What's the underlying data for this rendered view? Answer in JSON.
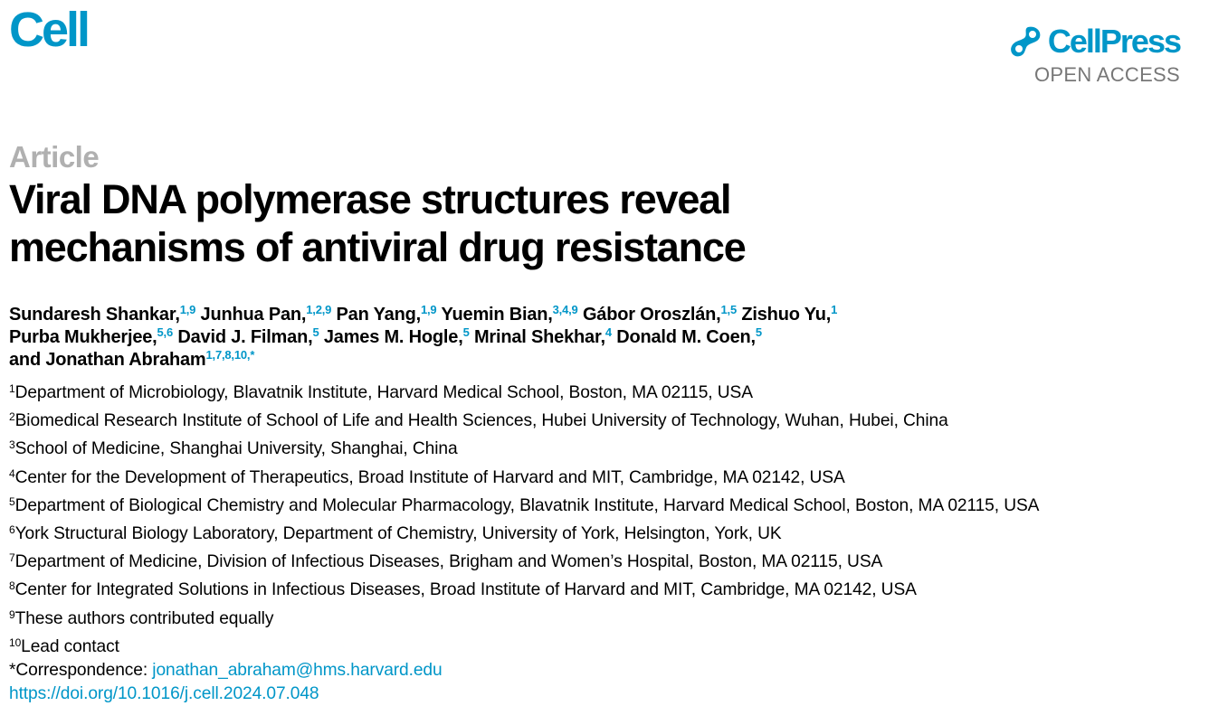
{
  "header": {
    "journal": "Cell",
    "publisher": "CellPress",
    "access": "OPEN ACCESS",
    "brand_color": "#0096c8"
  },
  "article": {
    "type": "Article",
    "title_line1": "Viral DNA polymerase structures reveal",
    "title_line2": "mechanisms of antiviral drug resistance"
  },
  "authors": [
    {
      "name": "Sundaresh Shankar,",
      "aff": "1,9"
    },
    {
      "name": "Junhua Pan,",
      "aff": "1,2,9"
    },
    {
      "name": "Pan Yang,",
      "aff": "1,9"
    },
    {
      "name": "Yuemin Bian,",
      "aff": "3,4,9"
    },
    {
      "name": "Gábor Oroszlán,",
      "aff": "1,5"
    },
    {
      "name": "Zishuo Yu,",
      "aff": "1"
    },
    {
      "name": "Purba Mukherjee,",
      "aff": "5,6"
    },
    {
      "name": "David J. Filman,",
      "aff": "5"
    },
    {
      "name": "James M. Hogle,",
      "aff": "5"
    },
    {
      "name": "Mrinal Shekhar,",
      "aff": "4"
    },
    {
      "name": "Donald M. Coen,",
      "aff": "5"
    },
    {
      "name": "and Jonathan Abraham",
      "aff": "1,7,8,10,*"
    }
  ],
  "affiliations": [
    {
      "num": "1",
      "text": "Department of Microbiology, Blavatnik Institute, Harvard Medical School, Boston, MA 02115, USA"
    },
    {
      "num": "2",
      "text": "Biomedical Research Institute of School of Life and Health Sciences, Hubei University of Technology, Wuhan, Hubei, China"
    },
    {
      "num": "3",
      "text": "School of Medicine, Shanghai University, Shanghai, China"
    },
    {
      "num": "4",
      "text": "Center for the Development of Therapeutics, Broad Institute of Harvard and MIT, Cambridge, MA 02142, USA"
    },
    {
      "num": "5",
      "text": "Department of Biological Chemistry and Molecular Pharmacology, Blavatnik Institute, Harvard Medical School, Boston, MA 02115, USA"
    },
    {
      "num": "6",
      "text": "York Structural Biology Laboratory, Department of Chemistry, University of York, Helsington, York, UK"
    },
    {
      "num": "7",
      "text": "Department of Medicine, Division of Infectious Diseases, Brigham and Women’s Hospital, Boston, MA 02115, USA"
    },
    {
      "num": "8",
      "text": "Center for Integrated Solutions in Infectious Diseases, Broad Institute of Harvard and MIT, Cambridge, MA 02142, USA"
    },
    {
      "num": "9",
      "text": "These authors contributed equally"
    },
    {
      "num": "10",
      "text": "Lead contact"
    }
  ],
  "correspondence": {
    "label": "*Correspondence: ",
    "email": "jonathan_abraham@hms.harvard.edu"
  },
  "doi": "https://doi.org/10.1016/j.cell.2024.07.048"
}
